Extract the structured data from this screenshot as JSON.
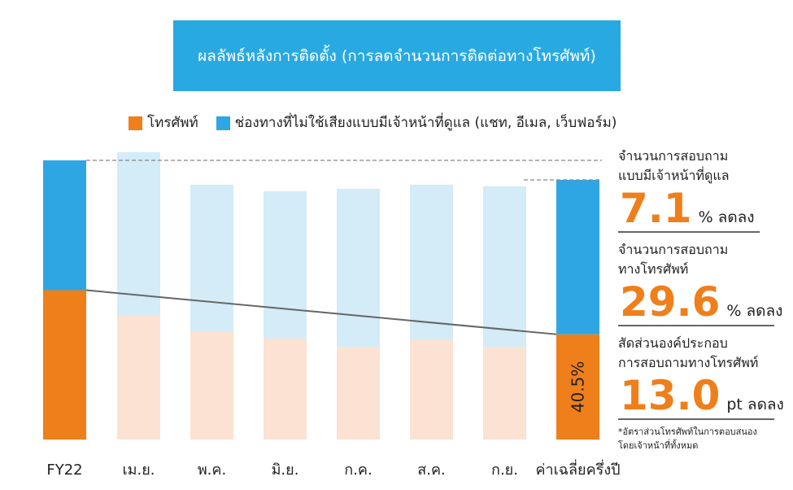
{
  "title": "ผลลัพธ์หลังการติดตั้ง (การลดจำนวนการติดต่อทางโทรศัพท์)",
  "colors": {
    "title_bg": "#29a9e1",
    "phone": "#ef7f1a",
    "phone_light": "#fbe2d2",
    "nonvoice": "#2ea6e3",
    "nonvoice_light": "#d4ebf8",
    "line": "#666666"
  },
  "chart_data": {
    "type": "bar",
    "stacked": true,
    "categories": [
      "FY22",
      "เม.ย.",
      "พ.ค.",
      "มิ.ย.",
      "ก.ค.",
      "ส.ค.",
      "ก.ย.",
      "ค่าเฉลี่ยครึ่งปี"
    ],
    "series": [
      {
        "name": "โทรศัพท์",
        "values": [
          53.5,
          44.6,
          38.8,
          36.2,
          33.2,
          35.9,
          33.2,
          37.7
        ]
      },
      {
        "name": "ช่องทางที่ไม่ใช้เสียงแบบมีเจ้าหน้าที่ดูแล (แชท, อีเมล, เว็บฟอร์ม)",
        "values": [
          46.5,
          58.3,
          52.5,
          52.7,
          56.6,
          55.4,
          57.5,
          55.3
        ]
      }
    ],
    "highlighted": [
      "FY22",
      "ค่าเฉลี่ยครึ่งปี"
    ],
    "data_labels": {
      "ค่าเฉลี่ยครึ่งปี": "40.5%"
    },
    "legend_position": "top",
    "grid": false,
    "ylim": [
      0,
      110
    ]
  },
  "annotations": [
    {
      "label": "จำนวนการสอบถาม\nแบบมีเจ้าหน้าที่ดูแล",
      "value": "7.1",
      "unit": "% ลดลง"
    },
    {
      "label": "จำนวนการสอบถาม\nทางโทรศัพท์",
      "value": "29.6",
      "unit": "% ลดลง"
    },
    {
      "label": "สัดส่วนองค์ประกอบ\nการสอบถามทางโทรศัพท์",
      "value": "13.0",
      "unit": "pt ลดลง"
    }
  ],
  "footnote": "*อัตราส่วนโทรศัพท์ในการตอบสนอง\nโดยเจ้าหน้าที่ทั้งหมด"
}
